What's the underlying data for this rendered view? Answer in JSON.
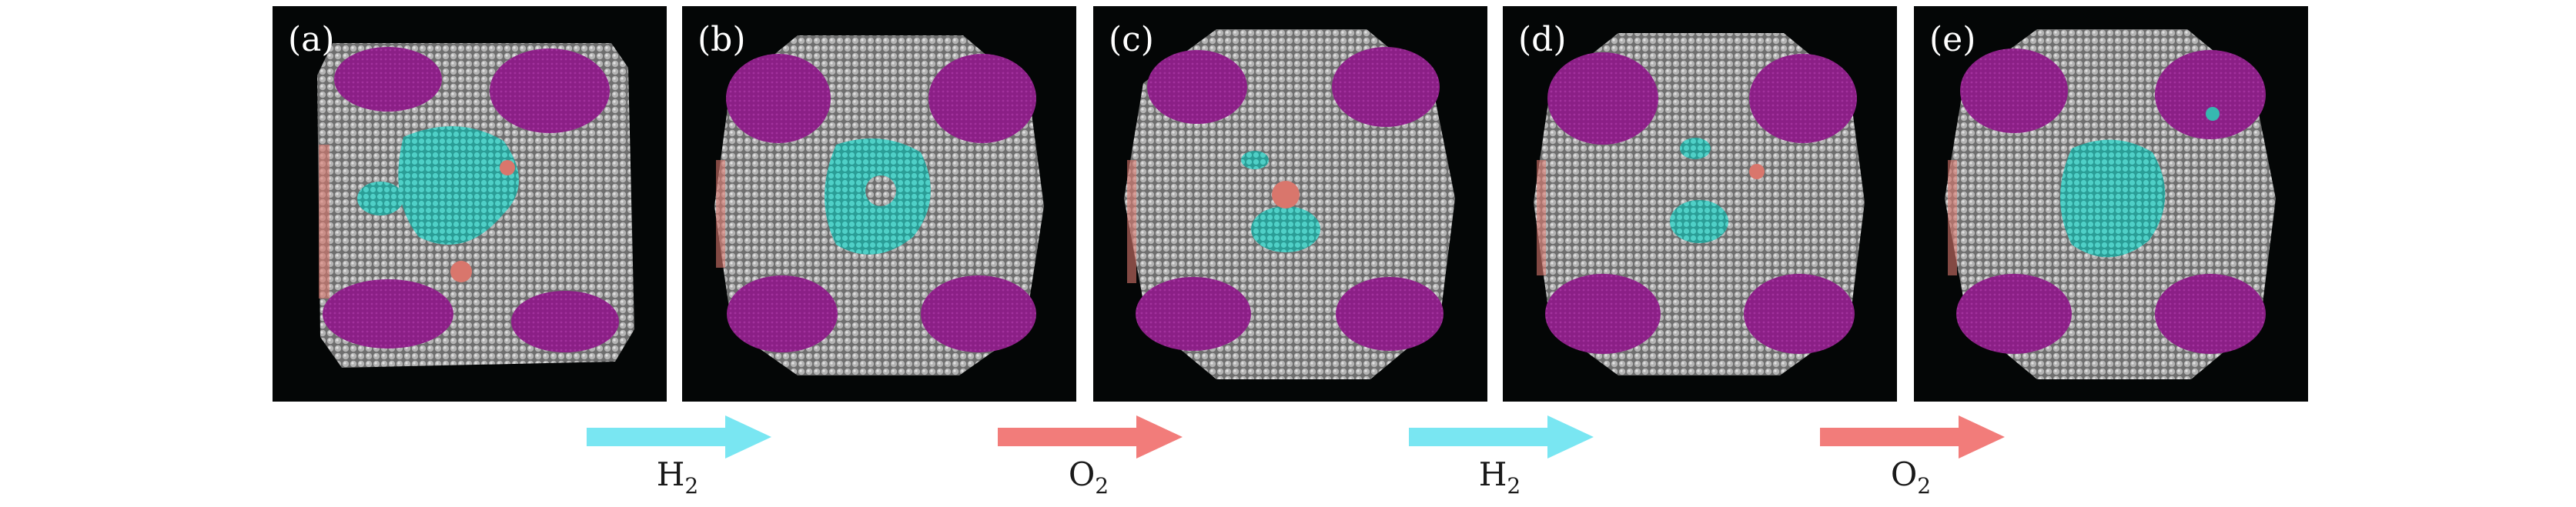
{
  "colors": {
    "background": "#040606",
    "surface": "#8f8f8f",
    "purple": "#8b1f86",
    "teal": "#36b8b0",
    "salmon": "#d9766c",
    "arrow_h2": "#79e6f2",
    "arrow_o2": "#f27c7a"
  },
  "panels": [
    {
      "label": "(a)"
    },
    {
      "label": "(b)"
    },
    {
      "label": "(c)"
    },
    {
      "label": "(d)"
    },
    {
      "label": "(e)"
    }
  ],
  "steps": [
    {
      "gas": "H",
      "subscript": "2",
      "arrow_color": "#79e6f2"
    },
    {
      "gas": "O",
      "subscript": "2",
      "arrow_color": "#f27c7a"
    },
    {
      "gas": "H",
      "subscript": "2",
      "arrow_color": "#79e6f2"
    },
    {
      "gas": "O",
      "subscript": "2",
      "arrow_color": "#f27c7a"
    }
  ]
}
